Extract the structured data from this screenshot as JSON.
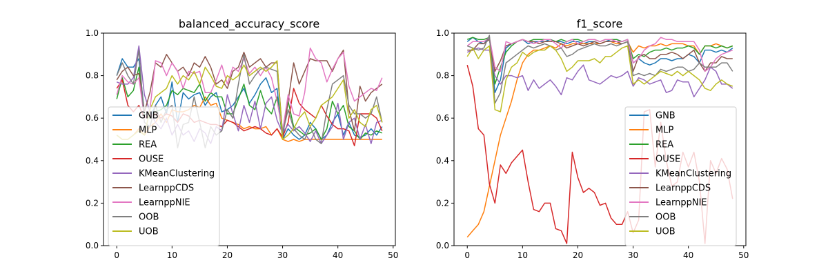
{
  "colors": {
    "GNB": "#1f77b4",
    "MLP": "#ff7f0e",
    "REA": "#2ca02c",
    "OUSE": "#d62728",
    "KMeanClustering": "#9467bd",
    "LearnppCDS": "#8c564b",
    "LearnppNIE": "#e377c2",
    "OOB": "#7f7f7f",
    "UOB": "#bcbd22"
  },
  "chart_data": [
    {
      "type": "line",
      "title": "balanced_accuracy_score",
      "xlabel": "",
      "ylabel": "",
      "xlim": [
        -2.4,
        50.4
      ],
      "ylim": [
        0.0,
        1.0
      ],
      "xticks": [
        0,
        10,
        20,
        30,
        40,
        50
      ],
      "yticks": [
        0.0,
        0.2,
        0.4,
        0.6,
        0.8,
        1.0
      ],
      "grid": false,
      "legend_position": "lower-left",
      "x": [
        0,
        1,
        2,
        3,
        4,
        5,
        6,
        7,
        8,
        9,
        10,
        11,
        12,
        13,
        14,
        15,
        16,
        17,
        18,
        19,
        20,
        21,
        22,
        23,
        24,
        25,
        26,
        27,
        28,
        29,
        30,
        31,
        32,
        33,
        34,
        35,
        36,
        37,
        38,
        39,
        40,
        41,
        42,
        43,
        44,
        45,
        46,
        47,
        48
      ],
      "series": [
        {
          "name": "GNB",
          "values": [
            0.8,
            0.88,
            0.84,
            0.84,
            0.88,
            0.62,
            0.6,
            0.66,
            0.7,
            0.62,
            0.77,
            0.58,
            0.72,
            0.69,
            0.71,
            0.72,
            0.66,
            0.7,
            0.72,
            0.63,
            0.64,
            0.66,
            0.7,
            0.74,
            0.67,
            0.71,
            0.76,
            0.79,
            0.72,
            0.74,
            0.5,
            0.55,
            0.52,
            0.5,
            0.52,
            0.58,
            0.55,
            0.5,
            0.52,
            0.58,
            0.62,
            0.52,
            0.58,
            0.52,
            0.51,
            0.52,
            0.55,
            0.52,
            0.56
          ]
        },
        {
          "name": "MLP",
          "values": [
            0.52,
            0.5,
            0.5,
            0.52,
            0.55,
            0.52,
            0.56,
            0.58,
            0.62,
            0.58,
            0.64,
            0.63,
            0.63,
            0.64,
            0.66,
            0.65,
            0.7,
            0.66,
            0.67,
            0.6,
            0.59,
            0.58,
            0.57,
            0.55,
            0.56,
            0.55,
            0.55,
            0.56,
            0.52,
            0.55,
            0.5,
            0.49,
            0.5,
            0.49,
            0.5,
            0.5,
            0.5,
            0.5,
            0.5,
            0.5,
            0.5,
            0.5,
            0.5,
            0.5,
            0.5,
            0.5,
            0.5,
            0.5,
            0.5
          ]
        },
        {
          "name": "REA",
          "values": [
            0.69,
            0.79,
            0.7,
            0.73,
            0.84,
            0.62,
            0.6,
            0.63,
            0.64,
            0.66,
            0.73,
            0.71,
            0.74,
            0.73,
            0.72,
            0.76,
            0.68,
            0.72,
            0.7,
            0.7,
            0.62,
            0.62,
            0.69,
            0.76,
            0.66,
            0.64,
            0.73,
            0.65,
            0.62,
            0.7,
            0.51,
            0.68,
            0.56,
            0.54,
            0.52,
            0.53,
            0.55,
            0.5,
            0.55,
            0.68,
            0.62,
            0.66,
            0.56,
            0.54,
            0.5,
            0.53,
            0.52,
            0.54,
            0.53
          ]
        },
        {
          "name": "OUSE",
          "values": [
            0.74,
            0.78,
            0.66,
            0.63,
            0.66,
            0.6,
            0.61,
            0.62,
            0.6,
            0.62,
            0.61,
            0.58,
            0.62,
            0.61,
            0.58,
            0.59,
            0.58,
            0.57,
            0.57,
            0.56,
            0.59,
            0.58,
            0.56,
            0.54,
            0.55,
            0.56,
            0.55,
            0.53,
            0.52,
            0.55,
            0.51,
            0.58,
            0.74,
            0.67,
            0.64,
            0.62,
            0.6,
            0.66,
            0.61,
            0.57,
            0.55,
            0.55,
            0.54,
            0.47,
            0.62,
            0.62,
            0.62,
            0.6,
            0.54
          ]
        },
        {
          "name": "KMeanClustering",
          "values": [
            0.77,
            0.76,
            0.76,
            0.79,
            0.94,
            0.71,
            0.63,
            0.58,
            0.55,
            0.6,
            0.52,
            0.57,
            0.52,
            0.54,
            0.49,
            0.55,
            0.53,
            0.48,
            0.56,
            0.54,
            0.71,
            0.62,
            0.54,
            0.66,
            0.58,
            0.68,
            0.55,
            0.67,
            0.7,
            0.59,
            0.53,
            0.57,
            0.54,
            0.56,
            0.53,
            0.49,
            0.54,
            0.48,
            0.52,
            0.56,
            0.67,
            0.5,
            0.58,
            0.6,
            0.5,
            0.57,
            0.48,
            0.58,
            0.59
          ]
        },
        {
          "name": "LearnppCDS",
          "values": [
            0.78,
            0.82,
            0.84,
            0.8,
            0.81,
            0.63,
            0.72,
            0.86,
            0.84,
            0.9,
            0.86,
            0.82,
            0.84,
            0.8,
            0.86,
            0.84,
            0.89,
            0.84,
            0.76,
            0.78,
            0.74,
            0.82,
            0.84,
            0.91,
            0.84,
            0.86,
            0.88,
            0.84,
            0.86,
            0.86,
            0.52,
            0.68,
            0.86,
            0.76,
            0.82,
            0.88,
            0.87,
            0.87,
            0.87,
            0.82,
            0.88,
            0.92,
            0.64,
            0.54,
            0.75,
            0.68,
            0.72,
            0.74,
            0.76
          ]
        },
        {
          "name": "LearnppNIE",
          "values": [
            0.71,
            0.8,
            0.77,
            0.76,
            0.79,
            0.6,
            0.64,
            0.87,
            0.86,
            0.8,
            0.86,
            0.82,
            0.74,
            0.82,
            0.81,
            0.82,
            0.72,
            0.72,
            0.78,
            0.85,
            0.76,
            0.84,
            0.82,
            0.88,
            0.81,
            0.84,
            0.8,
            0.84,
            0.79,
            0.68,
            0.54,
            0.71,
            0.62,
            0.61,
            0.72,
            0.93,
            0.88,
            0.86,
            0.77,
            0.83,
            0.88,
            0.91,
            0.75,
            0.68,
            0.7,
            0.72,
            0.74,
            0.73,
            0.79
          ]
        },
        {
          "name": "OOB",
          "values": [
            0.8,
            0.86,
            0.8,
            0.76,
            0.92,
            0.58,
            0.56,
            0.66,
            0.58,
            0.64,
            0.66,
            0.46,
            0.57,
            0.58,
            0.7,
            0.58,
            0.46,
            0.56,
            0.52,
            0.54,
            0.64,
            0.6,
            0.76,
            0.9,
            0.76,
            0.8,
            0.83,
            0.84,
            0.83,
            0.82,
            0.53,
            0.64,
            0.55,
            0.52,
            0.5,
            0.56,
            0.5,
            0.48,
            0.64,
            0.76,
            0.78,
            0.8,
            0.66,
            0.62,
            0.62,
            0.6,
            0.62,
            0.7,
            0.58
          ]
        },
        {
          "name": "UOB",
          "values": [
            0.52,
            0.5,
            0.5,
            0.52,
            0.54,
            0.52,
            0.64,
            0.7,
            0.72,
            0.74,
            0.8,
            0.76,
            0.8,
            0.78,
            0.82,
            0.76,
            0.84,
            0.8,
            0.75,
            0.74,
            0.8,
            0.78,
            0.8,
            0.85,
            0.8,
            0.82,
            0.84,
            0.82,
            0.84,
            0.87,
            0.5,
            0.52,
            0.55,
            0.6,
            0.63,
            0.56,
            0.6,
            0.66,
            0.68,
            0.7,
            0.74,
            0.78,
            0.6,
            0.64,
            0.58,
            0.56,
            0.64,
            0.66,
            0.58
          ]
        }
      ]
    },
    {
      "type": "line",
      "title": "f1_score",
      "xlabel": "",
      "ylabel": "",
      "xlim": [
        -2.4,
        50.4
      ],
      "ylim": [
        0.0,
        1.0
      ],
      "xticks": [
        0,
        10,
        20,
        30,
        40,
        50
      ],
      "yticks": [
        0.0,
        0.2,
        0.4,
        0.6,
        0.8,
        1.0
      ],
      "grid": false,
      "legend_position": "lower-right",
      "x": [
        0,
        1,
        2,
        3,
        4,
        5,
        6,
        7,
        8,
        9,
        10,
        11,
        12,
        13,
        14,
        15,
        16,
        17,
        18,
        19,
        20,
        21,
        22,
        23,
        24,
        25,
        26,
        27,
        28,
        29,
        30,
        31,
        32,
        33,
        34,
        35,
        36,
        37,
        38,
        39,
        40,
        41,
        42,
        43,
        44,
        45,
        46,
        47,
        48
      ],
      "series": [
        {
          "name": "GNB",
          "values": [
            0.96,
            0.98,
            0.96,
            0.95,
            0.98,
            0.72,
            0.78,
            0.93,
            0.95,
            0.96,
            0.97,
            0.95,
            0.96,
            0.96,
            0.96,
            0.97,
            0.96,
            0.96,
            0.95,
            0.96,
            0.96,
            0.95,
            0.96,
            0.96,
            0.95,
            0.96,
            0.97,
            0.97,
            0.96,
            0.97,
            0.86,
            0.88,
            0.86,
            0.85,
            0.86,
            0.88,
            0.88,
            0.87,
            0.88,
            0.88,
            0.9,
            0.89,
            0.86,
            0.92,
            0.92,
            0.91,
            0.92,
            0.91,
            0.93
          ]
        },
        {
          "name": "MLP",
          "values": [
            0.04,
            0.07,
            0.1,
            0.16,
            0.28,
            0.4,
            0.52,
            0.6,
            0.68,
            0.78,
            0.86,
            0.9,
            0.92,
            0.92,
            0.93,
            0.94,
            0.93,
            0.95,
            0.94,
            0.95,
            0.95,
            0.95,
            0.95,
            0.95,
            0.95,
            0.96,
            0.96,
            0.95,
            0.95,
            0.96,
            0.91,
            0.94,
            0.93,
            0.94,
            0.94,
            0.95,
            0.94,
            0.95,
            0.95,
            0.95,
            0.94,
            0.94,
            0.9,
            0.94,
            0.94,
            0.95,
            0.94,
            0.93,
            0.94
          ]
        },
        {
          "name": "REA",
          "values": [
            0.97,
            0.98,
            0.97,
            0.97,
            0.98,
            0.76,
            0.84,
            0.91,
            0.94,
            0.96,
            0.97,
            0.96,
            0.97,
            0.97,
            0.97,
            0.97,
            0.96,
            0.97,
            0.96,
            0.97,
            0.97,
            0.96,
            0.97,
            0.97,
            0.96,
            0.97,
            0.97,
            0.97,
            0.96,
            0.97,
            0.88,
            0.9,
            0.89,
            0.91,
            0.92,
            0.92,
            0.93,
            0.92,
            0.93,
            0.93,
            0.94,
            0.93,
            0.9,
            0.94,
            0.94,
            0.93,
            0.94,
            0.93,
            0.94
          ]
        },
        {
          "name": "OUSE",
          "values": [
            0.85,
            0.75,
            0.55,
            0.52,
            0.29,
            0.2,
            0.38,
            0.34,
            0.39,
            0.42,
            0.45,
            0.3,
            0.17,
            0.16,
            0.2,
            0.2,
            0.08,
            0.07,
            0.01,
            0.44,
            0.32,
            0.25,
            0.27,
            0.25,
            0.19,
            0.2,
            0.13,
            0.1,
            0.1,
            0.16,
            0.06,
            0.12,
            0.63,
            0.64,
            0.37,
            0.58,
            0.4,
            0.28,
            0.3,
            0.44,
            0.37,
            0.44,
            0.3,
            0.01,
            0.4,
            0.34,
            0.41,
            0.36,
            0.22
          ]
        },
        {
          "name": "KMeanClustering",
          "values": [
            0.91,
            0.92,
            0.93,
            0.92,
            0.92,
            0.8,
            0.76,
            0.8,
            0.8,
            0.79,
            0.8,
            0.73,
            0.78,
            0.74,
            0.76,
            0.78,
            0.75,
            0.71,
            0.79,
            0.78,
            0.82,
            0.85,
            0.78,
            0.77,
            0.76,
            0.78,
            0.8,
            0.79,
            0.8,
            0.82,
            0.75,
            0.79,
            0.78,
            0.76,
            0.77,
            0.78,
            0.72,
            0.73,
            0.78,
            0.77,
            0.77,
            0.7,
            0.74,
            0.78,
            0.84,
            0.82,
            0.76,
            0.76,
            0.74
          ]
        },
        {
          "name": "LearnppCDS",
          "values": [
            0.92,
            0.92,
            0.95,
            0.95,
            0.97,
            0.82,
            0.87,
            0.94,
            0.95,
            0.96,
            0.97,
            0.96,
            0.96,
            0.95,
            0.96,
            0.96,
            0.96,
            0.95,
            0.93,
            0.94,
            0.95,
            0.94,
            0.95,
            0.96,
            0.95,
            0.96,
            0.96,
            0.96,
            0.95,
            0.96,
            0.82,
            0.89,
            0.9,
            0.88,
            0.88,
            0.9,
            0.9,
            0.91,
            0.9,
            0.88,
            0.9,
            0.92,
            0.86,
            0.82,
            0.86,
            0.86,
            0.89,
            0.88,
            0.88
          ]
        },
        {
          "name": "LearnppNIE",
          "values": [
            0.94,
            0.96,
            0.96,
            0.96,
            0.98,
            0.84,
            0.82,
            0.96,
            0.95,
            0.96,
            0.97,
            0.96,
            0.95,
            0.96,
            0.97,
            0.97,
            0.95,
            0.93,
            0.96,
            0.97,
            0.95,
            0.96,
            0.97,
            0.97,
            0.96,
            0.97,
            0.97,
            0.96,
            0.96,
            0.97,
            0.86,
            0.88,
            0.92,
            0.94,
            0.95,
            0.98,
            0.97,
            0.97,
            0.96,
            0.96,
            0.96,
            0.96,
            0.92,
            0.82,
            0.84,
            0.88,
            0.9,
            0.91,
            0.92
          ]
        },
        {
          "name": "OOB",
          "values": [
            0.94,
            0.93,
            0.92,
            0.93,
            0.99,
            0.67,
            0.72,
            0.86,
            0.88,
            0.9,
            0.92,
            0.94,
            0.93,
            0.94,
            0.95,
            0.94,
            0.92,
            0.93,
            0.89,
            0.9,
            0.92,
            0.93,
            0.94,
            0.95,
            0.94,
            0.94,
            0.95,
            0.94,
            0.95,
            0.96,
            0.8,
            0.81,
            0.8,
            0.81,
            0.8,
            0.83,
            0.82,
            0.83,
            0.84,
            0.84,
            0.82,
            0.83,
            0.86,
            0.84,
            0.84,
            0.84,
            0.86,
            0.86,
            0.82
          ]
        },
        {
          "name": "UOB",
          "values": [
            0.89,
            0.93,
            0.88,
            0.92,
            0.94,
            0.64,
            0.63,
            0.78,
            0.84,
            0.86,
            0.91,
            0.89,
            0.91,
            0.92,
            0.92,
            0.94,
            0.92,
            0.88,
            0.82,
            0.84,
            0.87,
            0.87,
            0.87,
            0.88,
            0.86,
            0.89,
            0.89,
            0.91,
            0.93,
            0.94,
            0.76,
            0.78,
            0.76,
            0.78,
            0.8,
            0.82,
            0.81,
            0.8,
            0.82,
            0.8,
            0.82,
            0.8,
            0.78,
            0.74,
            0.73,
            0.76,
            0.78,
            0.76,
            0.75
          ]
        }
      ]
    }
  ]
}
